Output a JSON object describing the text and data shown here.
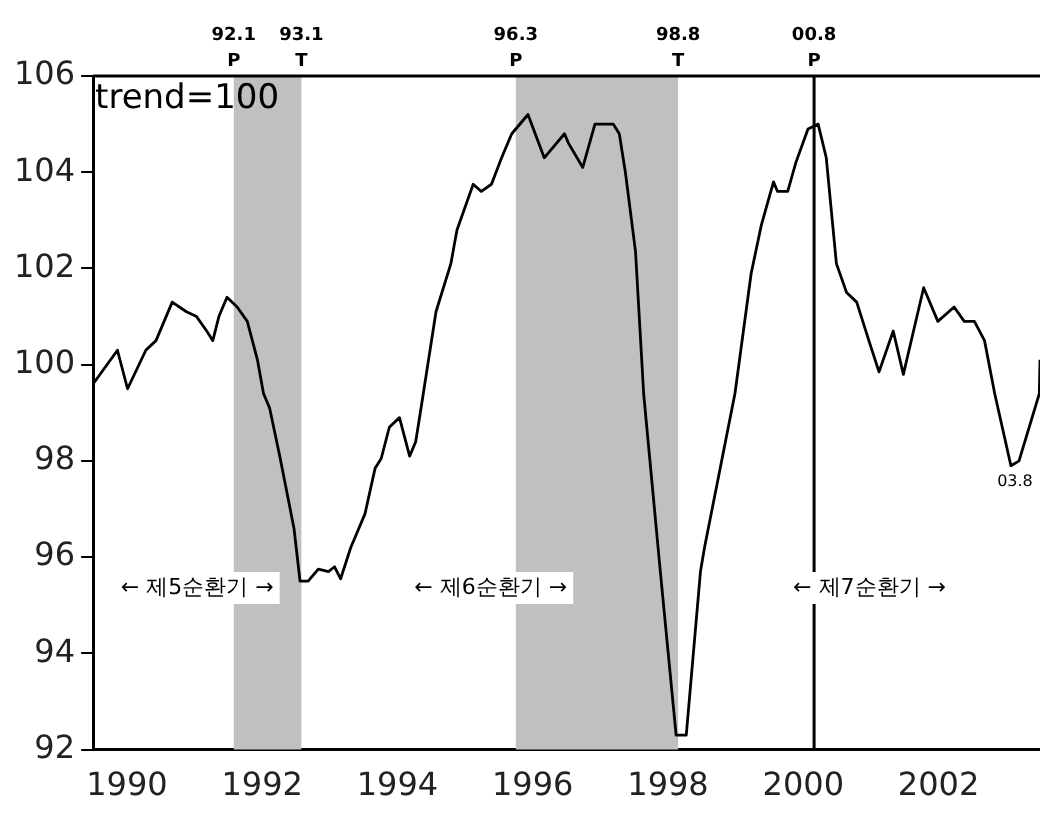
{
  "chart_data": {
    "type": "line",
    "x": [
      1990.0,
      1990.36,
      1990.51,
      1990.78,
      1990.93,
      1991.17,
      1991.38,
      1991.53,
      1991.68,
      1991.77,
      1991.86,
      1991.98,
      1992.13,
      1992.28,
      1992.43,
      1992.52,
      1992.61,
      1992.76,
      1992.97,
      1993.06,
      1993.18,
      1993.33,
      1993.48,
      1993.57,
      1993.66,
      1993.81,
      1994.02,
      1994.17,
      1994.26,
      1994.38,
      1994.53,
      1994.68,
      1994.77,
      1994.86,
      1995.07,
      1995.29,
      1995.38,
      1995.62,
      1995.74,
      1995.89,
      1996.04,
      1996.19,
      1996.43,
      1996.67,
      1996.97,
      1997.03,
      1997.24,
      1997.42,
      1997.57,
      1997.69,
      1997.78,
      1997.87,
      1998.02,
      1998.14,
      1998.38,
      1998.62,
      1998.77,
      1998.98,
      1999.04,
      1999.49,
      1999.73,
      1999.88,
      2000.06,
      2000.12,
      2000.27,
      2000.39,
      2000.57,
      2000.72,
      2000.84,
      2000.99,
      2001.14,
      2001.29,
      2001.47,
      2001.62,
      2001.83,
      2001.98,
      2002.13,
      2002.28,
      2002.49,
      2002.73,
      2002.88,
      2003.03,
      2003.18,
      2003.33,
      2003.57,
      2003.69,
      2003.99,
      2004.0
    ],
    "series": [
      {
        "color": "#000000",
        "values": [
          99.6,
          100.3,
          99.5,
          100.3,
          100.5,
          101.3,
          101.1,
          101.0,
          100.7,
          100.5,
          101.0,
          101.4,
          101.2,
          100.9,
          100.1,
          99.4,
          99.1,
          98.1,
          96.6,
          95.5,
          95.5,
          95.75,
          95.7,
          95.8,
          95.55,
          96.2,
          96.9,
          97.85,
          98.05,
          98.7,
          98.9,
          98.1,
          98.4,
          99.2,
          101.1,
          102.1,
          102.8,
          103.75,
          103.6,
          103.75,
          104.3,
          104.8,
          105.2,
          104.3,
          104.8,
          104.6,
          104.1,
          105.0,
          105.0,
          105.0,
          104.8,
          104.0,
          102.35,
          99.4,
          95.8,
          92.3,
          92.3,
          95.7,
          96.2,
          99.4,
          101.9,
          102.9,
          103.8,
          103.6,
          103.6,
          104.2,
          104.9,
          105.0,
          104.3,
          102.1,
          101.5,
          101.3,
          100.5,
          99.85,
          100.7,
          99.8,
          100.7,
          101.6,
          100.9,
          101.2,
          100.9,
          100.9,
          100.5,
          99.4,
          97.9,
          98.0,
          99.4,
          100.1
        ]
      }
    ],
    "xlim": [
      1990,
      2004
    ],
    "xticks": [
      {
        "value": 1990.5,
        "label": "1990"
      },
      {
        "value": 1992.5,
        "label": "1992"
      },
      {
        "value": 1994.5,
        "label": "1994"
      },
      {
        "value": 1996.5,
        "label": "1996"
      },
      {
        "value": 1998.5,
        "label": "1998"
      },
      {
        "value": 2000.5,
        "label": "2000"
      },
      {
        "value": 2002.5,
        "label": "2002"
      }
    ],
    "ylim": [
      92,
      106
    ],
    "yticks": [
      92,
      94,
      96,
      98,
      100,
      102,
      104,
      106
    ],
    "grid": false,
    "legend": false,
    "marker": "none",
    "line_style": "solid",
    "bands": [
      {
        "axis": "x",
        "from": 1992.08,
        "to": 1993.08,
        "color": "#c0c0c0"
      },
      {
        "axis": "x",
        "from": 1996.25,
        "to": 1998.65,
        "color": "#c0c0c0"
      }
    ],
    "ref_lines": [
      {
        "axis": "x",
        "value": 2000.66,
        "color": "#000000"
      }
    ],
    "annotations": [
      "trend=100",
      {
        "text": "92.1 P",
        "x": 1992.08,
        "y": 106
      },
      {
        "text": "93.1 T",
        "x": 1993.08,
        "y": 106
      },
      {
        "text": "96.3 P",
        "x": 1996.25,
        "y": 106
      },
      {
        "text": "98.8 T",
        "x": 1998.65,
        "y": 106
      },
      {
        "text": "00.8 P",
        "x": 2000.66,
        "y": 106
      },
      {
        "text": "03.8",
        "x": 2003.63,
        "y": 97.9
      },
      "← 제5순환기 →",
      "← 제6순환기 →",
      "← 제7순환기 →"
    ]
  }
}
